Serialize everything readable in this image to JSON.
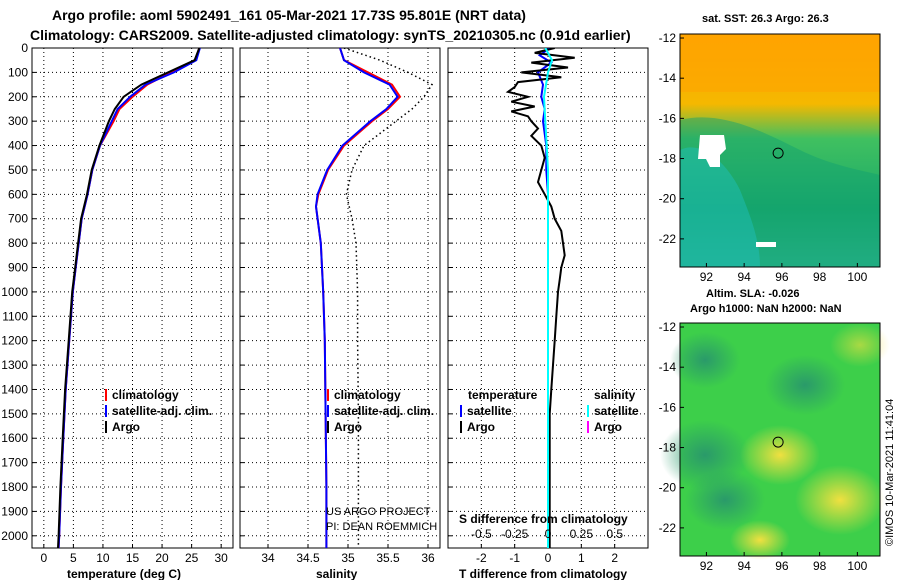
{
  "titles": {
    "line1": "Argo profile: aoml 5902491_161 05-Mar-2021 17.73S 95.801E (NRT data)",
    "line2": "Climatology: CARS2009. Satellite-adjusted climatology: synTS_20210305.nc (0.91d earlier)"
  },
  "credit": {
    "project": "US ARGO PROJECT",
    "pi": "PI: DEAN ROEMMICH",
    "stamp": "©IMOS 10-Mar-2021 11:41:04"
  },
  "colors": {
    "climatology": "#ff0000",
    "satellite": "#0000ff",
    "argo": "#000000",
    "sal_satellite": "#00ffff",
    "sal_argo": "#ff00ff"
  },
  "chart_data": [
    {
      "id": "temperature",
      "type": "line",
      "xlabel": "temperature (deg C)",
      "xlim": [
        -2,
        32
      ],
      "xticks": [
        0,
        5,
        10,
        15,
        20,
        25,
        30
      ],
      "xtick_labels": [
        "0",
        "5",
        "10",
        "15",
        "20",
        "25",
        "30"
      ],
      "ylim": [
        0,
        2050
      ],
      "yticks": [
        0,
        100,
        200,
        300,
        400,
        500,
        600,
        700,
        800,
        900,
        1000,
        1100,
        1200,
        1300,
        1400,
        1500,
        1600,
        1700,
        1800,
        1900,
        2000
      ],
      "ytick_labels": [
        "0",
        "100",
        "200",
        "300",
        "400",
        "500",
        "600",
        "700",
        "800",
        "900",
        "1000",
        "1100",
        "1200",
        "1300",
        "1400",
        "1500",
        "1600",
        "1700",
        "1800",
        "1900",
        "2000"
      ],
      "legend": [
        "climatology",
        "satellite-adj. clim.",
        "Argo"
      ],
      "series": [
        {
          "name": "climatology",
          "color": "#ff0000",
          "depth": [
            0,
            50,
            100,
            150,
            200,
            250,
            300,
            400,
            500,
            600,
            700,
            800,
            900,
            1000,
            1200,
            1400,
            1600,
            1800,
            2000,
            2050
          ],
          "values": [
            26.3,
            25.6,
            21.5,
            17.5,
            15.0,
            12.8,
            11.8,
            9.5,
            8.2,
            7.4,
            6.4,
            5.9,
            5.4,
            4.9,
            4.3,
            3.7,
            3.3,
            2.9,
            2.6,
            2.5
          ]
        },
        {
          "name": "satellite-adj. clim.",
          "color": "#0000ff",
          "depth": [
            0,
            50,
            100,
            150,
            200,
            250,
            300,
            400,
            500,
            600,
            700,
            800,
            900,
            1000,
            1200,
            1400,
            1600,
            1800,
            2000,
            2050
          ],
          "values": [
            26.4,
            25.8,
            22.0,
            17.2,
            14.6,
            12.5,
            11.5,
            9.5,
            8.2,
            7.4,
            6.4,
            5.9,
            5.4,
            4.9,
            4.3,
            3.7,
            3.3,
            2.9,
            2.6,
            2.5
          ]
        },
        {
          "name": "Argo",
          "color": "#000000",
          "depth": [
            0,
            50,
            100,
            150,
            200,
            250,
            300,
            400,
            500,
            600,
            700,
            800,
            900,
            1000,
            1200,
            1400,
            1600,
            1800,
            2000,
            2050
          ],
          "values": [
            26.3,
            25.5,
            21.0,
            16.5,
            13.5,
            12.0,
            11.0,
            9.4,
            8.1,
            7.3,
            6.3,
            5.8,
            5.3,
            4.8,
            4.2,
            3.6,
            3.2,
            2.8,
            2.5,
            2.4
          ]
        }
      ]
    },
    {
      "id": "salinity",
      "type": "line",
      "xlabel": "salinity",
      "xlim": [
        33.65,
        36.15
      ],
      "xticks": [
        34,
        34.5,
        35,
        35.5,
        36
      ],
      "xtick_labels": [
        "34",
        "34.5",
        "35",
        "35.5",
        "36"
      ],
      "ylim": [
        0,
        2050
      ],
      "legend": [
        "climatology",
        "satellite-adj. clim.",
        "Argo"
      ],
      "series": [
        {
          "name": "climatology",
          "color": "#ff0000",
          "depth": [
            0,
            50,
            100,
            150,
            200,
            250,
            300,
            400,
            500,
            600,
            650,
            700,
            800,
            1000,
            1200,
            1500,
            1800,
            2050
          ],
          "values": [
            34.9,
            34.95,
            35.25,
            35.55,
            35.65,
            35.5,
            35.3,
            34.95,
            34.75,
            34.63,
            34.6,
            34.62,
            34.66,
            34.69,
            34.71,
            34.72,
            34.73,
            34.73
          ]
        },
        {
          "name": "satellite-adj. clim.",
          "color": "#0000ff",
          "depth": [
            0,
            50,
            100,
            150,
            200,
            250,
            300,
            400,
            500,
            600,
            650,
            700,
            800,
            1000,
            1200,
            1500,
            1800,
            2050
          ],
          "values": [
            34.9,
            34.95,
            35.2,
            35.52,
            35.62,
            35.48,
            35.28,
            34.93,
            34.74,
            34.62,
            34.6,
            34.62,
            34.66,
            34.69,
            34.71,
            34.72,
            34.73,
            34.73
          ]
        },
        {
          "name": "Argo",
          "color": "#000000",
          "style": "dotted",
          "depth": [
            0,
            50,
            100,
            150,
            200,
            250,
            300,
            400,
            500,
            600,
            700,
            800,
            1000,
            1200,
            1500,
            1800,
            2000,
            2050
          ],
          "values": [
            34.95,
            35.4,
            35.75,
            36.05,
            35.95,
            35.8,
            35.6,
            35.2,
            35.05,
            34.98,
            35.05,
            35.1,
            35.12,
            35.12,
            35.13,
            35.13,
            35.13,
            35.13
          ]
        }
      ]
    },
    {
      "id": "difference",
      "type": "line",
      "xlabel": "T difference from climatology",
      "xlim": [
        -3,
        3
      ],
      "xticks": [
        -2,
        -1,
        0,
        1,
        2
      ],
      "xtick_labels": [
        "-2",
        "-1",
        "0",
        "1",
        "2"
      ],
      "top_xticks": [
        -0.5,
        -0.25,
        0,
        0.25,
        0.5
      ],
      "top_xtick_labels": [
        "-0.5",
        "-0.25",
        "0",
        "0.25",
        "0.5"
      ],
      "top_xlabel": "S difference from climatology",
      "ylim": [
        0,
        2050
      ],
      "legend_t_title": "temperature",
      "legend_s_title": "salinity",
      "legend": [
        "satellite",
        "Argo"
      ],
      "series": [
        {
          "name": "T satellite",
          "color": "#0000ff",
          "depth": [
            0,
            30,
            60,
            100,
            150,
            200,
            250,
            300,
            400,
            500,
            600,
            700,
            800,
            1000,
            1200,
            1500,
            1800,
            2050
          ],
          "values": [
            0.05,
            -0.25,
            0.1,
            -0.3,
            -0.15,
            -0.2,
            -0.1,
            -0.15,
            -0.05,
            -0.05,
            0,
            0,
            0,
            0,
            0,
            0,
            0,
            0
          ]
        },
        {
          "name": "T Argo",
          "color": "#000000",
          "depth": [
            0,
            20,
            40,
            60,
            80,
            100,
            120,
            140,
            160,
            180,
            200,
            220,
            240,
            260,
            280,
            300,
            330,
            360,
            400,
            450,
            500,
            550,
            600,
            650,
            700,
            750,
            800,
            850,
            900,
            950,
            1000,
            1100,
            1200,
            1300,
            1400,
            1500,
            1700,
            1900,
            2050
          ],
          "values": [
            0.2,
            -0.4,
            0.8,
            -0.5,
            0.6,
            -0.8,
            0.4,
            -0.9,
            -1.0,
            -1.2,
            -0.6,
            -1.1,
            -0.4,
            -1.1,
            -0.6,
            -0.5,
            -0.3,
            -0.5,
            -0.2,
            -0.1,
            -0.2,
            -0.3,
            -0.1,
            0.1,
            0.2,
            0.4,
            0.45,
            0.5,
            0.4,
            0.35,
            0.3,
            0.25,
            0.2,
            0.15,
            0.1,
            0.05,
            0.05,
            0.05,
            0.05
          ]
        },
        {
          "name": "S satellite",
          "color": "#00ffff",
          "depth": [
            0,
            50,
            100,
            200,
            300,
            400,
            500,
            600,
            700,
            800,
            1000,
            1200,
            1400,
            1600,
            2050
          ],
          "values": [
            -0.02,
            0.03,
            0.0,
            -0.03,
            -0.02,
            -0.01,
            0.0,
            0.0,
            0.0,
            0.0,
            0.0,
            0.0,
            0.0,
            0.0,
            0.0
          ]
        }
      ]
    },
    {
      "id": "sst_map",
      "type": "heatmap",
      "title": "sat. SST: 26.3 Argo: 26.3",
      "xticks": [
        92,
        94,
        96,
        98,
        100
      ],
      "yticks": [
        -12,
        -14,
        -16,
        -18,
        -20,
        -22
      ],
      "xlim": [
        90.6,
        101.2
      ],
      "ylim": [
        -23.4,
        -11.8
      ],
      "argo_position": [
        95.801,
        -17.73
      ]
    },
    {
      "id": "sla_map",
      "type": "heatmap",
      "title1": "Altim. SLA: -0.026",
      "title2": "Argo h1000: NaN h2000: NaN",
      "xticks": [
        92,
        94,
        96,
        98,
        100
      ],
      "yticks": [
        -12,
        -14,
        -16,
        -18,
        -20,
        -22
      ],
      "xlim": [
        90.6,
        101.2
      ],
      "ylim": [
        -23.4,
        -11.8
      ],
      "argo_position": [
        95.801,
        -17.73
      ]
    }
  ]
}
